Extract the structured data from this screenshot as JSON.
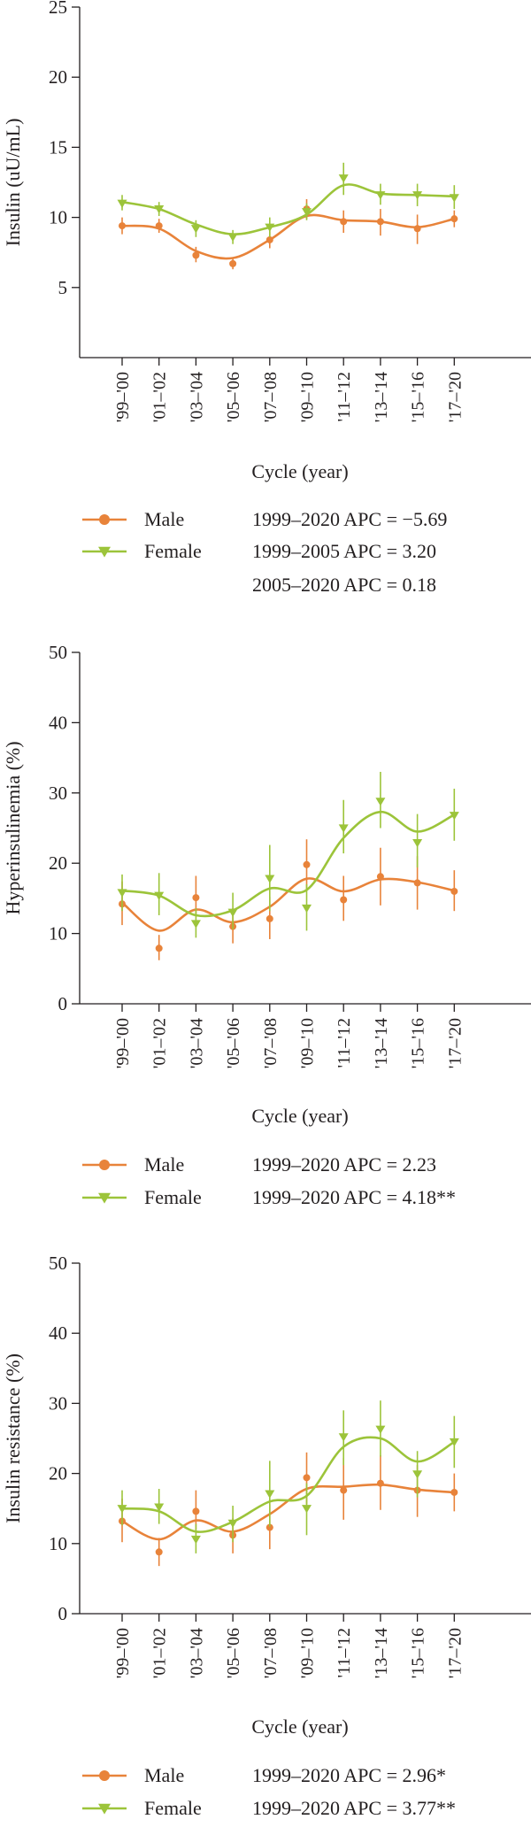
{
  "colors": {
    "male": "#e8833a",
    "female": "#9cc43a",
    "axis": "#231f20"
  },
  "cycles": [
    "'99–'00",
    "'01–'02",
    "'03–'04",
    "'05–'06",
    "'07–'08",
    "'09–'10",
    "'11–'12",
    "'13–'14",
    "'15–'16",
    "'17–'20"
  ],
  "chart_data": [
    {
      "type": "line",
      "ylabel": "Insulin (uU/mL)",
      "xlabel": "Cycle (year)",
      "ylim": [
        0,
        25
      ],
      "yticks": [
        5,
        10,
        15,
        20,
        25
      ],
      "series": [
        {
          "name": "Male",
          "marker": "circle",
          "values": [
            9.4,
            9.4,
            7.3,
            6.7,
            8.4,
            10.6,
            9.7,
            9.7,
            9.2,
            9.9
          ],
          "err_low": [
            8.8,
            8.9,
            6.8,
            6.3,
            7.8,
            9.9,
            8.9,
            8.7,
            8.1,
            9.3
          ],
          "err_high": [
            10.0,
            9.9,
            7.9,
            7.1,
            9.0,
            11.3,
            10.5,
            10.6,
            10.2,
            10.5
          ]
        },
        {
          "name": "Female",
          "marker": "triangle",
          "values": [
            11.0,
            10.6,
            9.2,
            8.6,
            9.3,
            10.4,
            12.8,
            11.6,
            11.6,
            11.4
          ],
          "err_low": [
            10.5,
            10.1,
            8.6,
            8.1,
            8.6,
            9.8,
            11.6,
            10.9,
            10.8,
            10.6
          ],
          "err_high": [
            11.6,
            11.1,
            9.8,
            9.1,
            10.0,
            11.0,
            13.9,
            12.4,
            12.4,
            12.3
          ]
        }
      ],
      "trends": [
        [
          9.4,
          9.2,
          7.6,
          7.1,
          8.4,
          10.1,
          9.8,
          9.7,
          9.3,
          9.9
        ],
        [
          11.1,
          10.6,
          9.5,
          8.8,
          9.3,
          10.2,
          12.3,
          11.7,
          11.6,
          11.5
        ]
      ],
      "legend": [
        {
          "series": "Male",
          "label": "Male",
          "apc": [
            "1999–2020 APC = −5.69"
          ]
        },
        {
          "series": "Female",
          "label": "Female",
          "apc": [
            "1999–2005 APC = 3.20",
            "2005–2020 APC = 0.18"
          ]
        }
      ]
    },
    {
      "type": "line",
      "ylabel": "Hyperinsulinemia (%)",
      "xlabel": "Cycle (year)",
      "ylim": [
        0,
        50
      ],
      "yticks": [
        0,
        10,
        20,
        30,
        40,
        50
      ],
      "series": [
        {
          "name": "Male",
          "marker": "circle",
          "values": [
            14.2,
            7.9,
            15.1,
            11.0,
            12.1,
            19.8,
            14.8,
            18.1,
            17.2,
            16.0
          ],
          "err_low": [
            11.2,
            6.2,
            12.4,
            8.6,
            9.2,
            16.2,
            11.8,
            14.0,
            13.4,
            13.2
          ],
          "err_high": [
            17.4,
            9.8,
            18.2,
            13.6,
            15.2,
            23.4,
            18.2,
            22.2,
            21.0,
            19.0
          ]
        },
        {
          "name": "Female",
          "marker": "triangle",
          "values": [
            15.8,
            15.4,
            11.4,
            13.0,
            17.8,
            13.6,
            25.0,
            28.8,
            22.9,
            26.8
          ],
          "err_low": [
            13.2,
            12.6,
            9.4,
            10.6,
            13.2,
            10.4,
            21.4,
            25.0,
            19.4,
            23.2
          ],
          "err_high": [
            18.4,
            18.6,
            13.6,
            15.8,
            22.6,
            17.0,
            29.0,
            33.0,
            27.0,
            30.6
          ]
        }
      ],
      "trends": [
        [
          14.4,
          10.4,
          13.4,
          11.6,
          13.8,
          17.8,
          16.0,
          17.7,
          17.3,
          16.1
        ],
        [
          16.1,
          15.4,
          12.6,
          13.3,
          16.4,
          16.2,
          23.6,
          27.3,
          24.5,
          26.9
        ]
      ],
      "legend": [
        {
          "series": "Male",
          "label": "Male",
          "apc": [
            "1999–2020 APC = 2.23"
          ]
        },
        {
          "series": "Female",
          "label": "Female",
          "apc": [
            "1999–2020 APC = 4.18**"
          ]
        }
      ]
    },
    {
      "type": "line",
      "ylabel": "Insulin resistance (%)",
      "xlabel": "Cycle (year)",
      "ylim": [
        0,
        50
      ],
      "yticks": [
        0,
        10,
        20,
        30,
        40,
        50
      ],
      "series": [
        {
          "name": "Male",
          "marker": "circle",
          "values": [
            13.2,
            8.8,
            14.6,
            11.2,
            12.3,
            19.4,
            17.6,
            18.6,
            17.6,
            17.3
          ],
          "err_low": [
            10.2,
            6.8,
            12.0,
            8.6,
            9.2,
            15.6,
            13.4,
            14.8,
            13.8,
            14.6
          ],
          "err_high": [
            16.4,
            10.8,
            17.6,
            13.6,
            15.6,
            23.0,
            22.2,
            22.6,
            21.2,
            20.0
          ]
        },
        {
          "name": "Female",
          "marker": "triangle",
          "values": [
            15.0,
            15.2,
            10.6,
            12.9,
            17.1,
            15.0,
            25.2,
            26.3,
            19.9,
            24.5
          ],
          "err_low": [
            12.6,
            12.8,
            8.6,
            10.2,
            12.4,
            11.2,
            21.2,
            22.4,
            16.6,
            20.8
          ],
          "err_high": [
            17.6,
            17.8,
            12.8,
            15.4,
            21.8,
            18.6,
            29.0,
            30.4,
            23.2,
            28.2
          ]
        }
      ],
      "trends": [
        [
          13.2,
          10.6,
          13.3,
          11.7,
          14.2,
          17.8,
          18.1,
          18.4,
          17.7,
          17.3
        ],
        [
          15.0,
          14.6,
          11.7,
          13.1,
          16.0,
          16.8,
          23.8,
          25.0,
          21.7,
          24.5
        ]
      ],
      "legend": [
        {
          "series": "Male",
          "label": "Male",
          "apc": [
            "1999–2020 APC = 2.96*"
          ]
        },
        {
          "series": "Female",
          "label": "Female",
          "apc": [
            "1999–2020 APC = 3.77**"
          ]
        }
      ]
    }
  ]
}
